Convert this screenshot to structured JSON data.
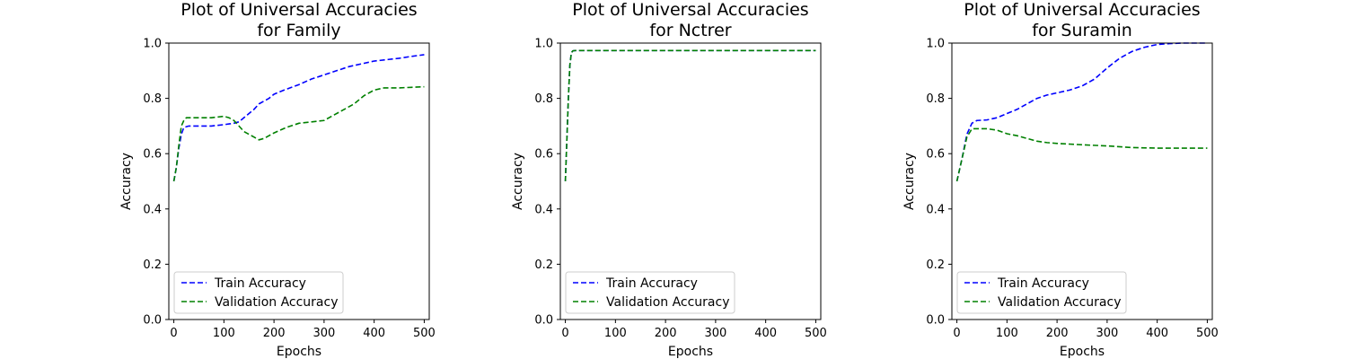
{
  "chart_data": [
    {
      "type": "line",
      "title": "Plot of Universal Accuracies\nfor Family",
      "xlabel": "Epochs",
      "ylabel": "Accuracy",
      "xlim": [
        -10,
        510
      ],
      "ylim": [
        0.0,
        1.0
      ],
      "xticks": [
        0,
        100,
        200,
        300,
        400,
        500
      ],
      "yticks": [
        0.0,
        0.2,
        0.4,
        0.6,
        0.8,
        1.0
      ],
      "legend": "lower-left",
      "grid": false,
      "series": [
        {
          "name": "Train Accuracy",
          "color": "#0000ff",
          "style": "dashed",
          "x": [
            0,
            5,
            10,
            15,
            20,
            30,
            50,
            75,
            100,
            120,
            130,
            140,
            150,
            160,
            170,
            180,
            190,
            200,
            220,
            250,
            275,
            300,
            325,
            350,
            375,
            400,
            425,
            450,
            475,
            500
          ],
          "y": [
            0.5,
            0.55,
            0.62,
            0.67,
            0.695,
            0.7,
            0.7,
            0.7,
            0.705,
            0.71,
            0.715,
            0.73,
            0.745,
            0.76,
            0.78,
            0.79,
            0.8,
            0.815,
            0.83,
            0.85,
            0.87,
            0.885,
            0.9,
            0.915,
            0.925,
            0.935,
            0.94,
            0.945,
            0.952,
            0.958
          ]
        },
        {
          "name": "Validation Accuracy",
          "color": "#008000",
          "style": "dashed",
          "x": [
            0,
            5,
            10,
            15,
            20,
            25,
            30,
            50,
            75,
            100,
            110,
            120,
            130,
            140,
            150,
            160,
            170,
            180,
            190,
            200,
            225,
            250,
            275,
            300,
            320,
            340,
            360,
            380,
            400,
            420,
            450,
            475,
            500
          ],
          "y": [
            0.5,
            0.55,
            0.63,
            0.7,
            0.72,
            0.73,
            0.73,
            0.73,
            0.73,
            0.735,
            0.73,
            0.72,
            0.7,
            0.68,
            0.67,
            0.66,
            0.65,
            0.655,
            0.665,
            0.675,
            0.695,
            0.71,
            0.715,
            0.72,
            0.74,
            0.76,
            0.78,
            0.81,
            0.83,
            0.838,
            0.838,
            0.84,
            0.842
          ]
        }
      ]
    },
    {
      "type": "line",
      "title": "Plot of Universal Accuracies\nfor Nctrer",
      "xlabel": "Epochs",
      "ylabel": "Accuracy",
      "xlim": [
        -10,
        510
      ],
      "ylim": [
        0.0,
        1.0
      ],
      "xticks": [
        0,
        100,
        200,
        300,
        400,
        500
      ],
      "yticks": [
        0.0,
        0.2,
        0.4,
        0.6,
        0.8,
        1.0
      ],
      "legend": "lower-left",
      "grid": false,
      "series": [
        {
          "name": "Train Accuracy",
          "color": "#0000ff",
          "style": "dashed",
          "x": [
            0,
            3,
            6,
            9,
            12,
            15,
            20,
            50,
            100,
            200,
            300,
            400,
            500
          ],
          "y": [
            0.5,
            0.65,
            0.8,
            0.92,
            0.965,
            0.972,
            0.973,
            0.973,
            0.973,
            0.973,
            0.973,
            0.973,
            0.973
          ]
        },
        {
          "name": "Validation Accuracy",
          "color": "#008000",
          "style": "dashed",
          "x": [
            0,
            3,
            6,
            9,
            12,
            15,
            20,
            50,
            100,
            200,
            300,
            400,
            500
          ],
          "y": [
            0.5,
            0.65,
            0.8,
            0.92,
            0.965,
            0.972,
            0.973,
            0.973,
            0.973,
            0.973,
            0.973,
            0.973,
            0.973
          ]
        }
      ]
    },
    {
      "type": "line",
      "title": "Plot of Universal Accuracies\nfor Suramin",
      "xlabel": "Epochs",
      "ylabel": "Accuracy",
      "xlim": [
        -10,
        510
      ],
      "ylim": [
        0.0,
        1.0
      ],
      "xticks": [
        0,
        100,
        200,
        300,
        400,
        500
      ],
      "yticks": [
        0.0,
        0.2,
        0.4,
        0.6,
        0.8,
        1.0
      ],
      "legend": "lower-left",
      "grid": false,
      "series": [
        {
          "name": "Train Accuracy",
          "color": "#0000ff",
          "style": "dashed",
          "x": [
            0,
            10,
            20,
            30,
            40,
            60,
            80,
            100,
            120,
            140,
            160,
            180,
            200,
            225,
            250,
            275,
            300,
            325,
            350,
            375,
            400,
            425,
            450,
            475,
            500
          ],
          "y": [
            0.5,
            0.58,
            0.67,
            0.71,
            0.72,
            0.722,
            0.73,
            0.745,
            0.76,
            0.78,
            0.8,
            0.812,
            0.82,
            0.83,
            0.845,
            0.87,
            0.91,
            0.945,
            0.97,
            0.985,
            0.995,
            0.998,
            1.0,
            1.0,
            1.0
          ]
        },
        {
          "name": "Validation Accuracy",
          "color": "#008000",
          "style": "dashed",
          "x": [
            0,
            10,
            20,
            30,
            40,
            60,
            80,
            100,
            120,
            140,
            160,
            180,
            200,
            250,
            300,
            350,
            400,
            450,
            500
          ],
          "y": [
            0.5,
            0.58,
            0.66,
            0.69,
            0.69,
            0.69,
            0.685,
            0.672,
            0.665,
            0.655,
            0.645,
            0.64,
            0.637,
            0.632,
            0.628,
            0.622,
            0.62,
            0.62,
            0.62
          ]
        }
      ]
    }
  ]
}
